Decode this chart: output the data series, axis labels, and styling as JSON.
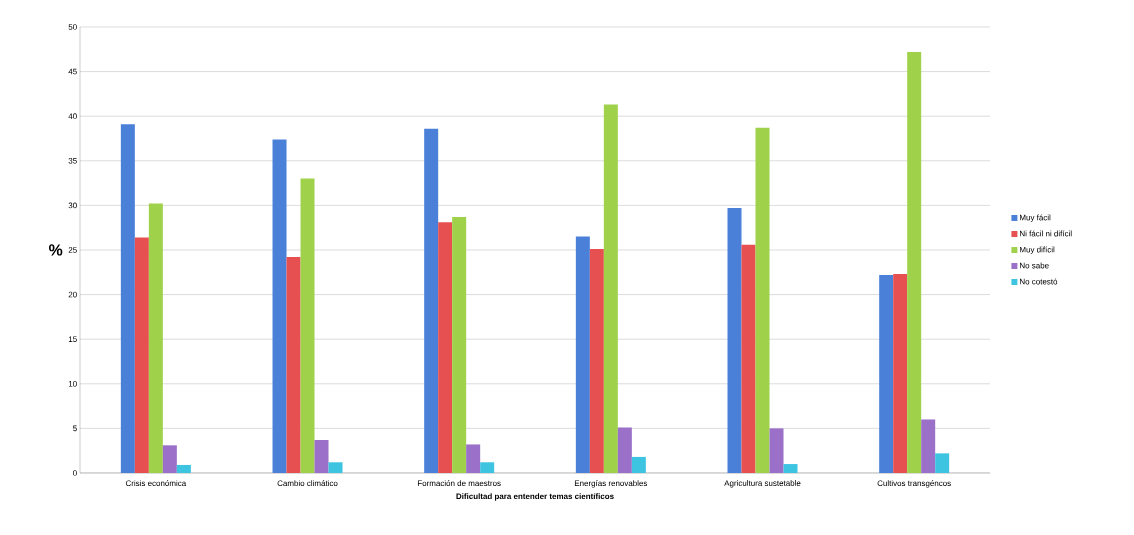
{
  "chart_data": {
    "type": "bar",
    "xlabel": "Dificultad para entender temas científicos",
    "ylabel": "%",
    "categories": [
      "Crisis económica",
      "Cambio climático",
      "Formación de maestros",
      "Energías renovables",
      "Agricultura sustetable",
      "Cultivos transgéncos"
    ],
    "series": [
      {
        "name": "Muy fácil",
        "color": "#4a80d8",
        "values": [
          39.1,
          37.4,
          38.6,
          26.5,
          29.7,
          22.2
        ]
      },
      {
        "name": "Ni fácil ni difícil",
        "color": "#e65050",
        "values": [
          26.4,
          24.2,
          28.1,
          25.1,
          25.6,
          22.3
        ]
      },
      {
        "name": "Muy difícil",
        "color": "#9fd24a",
        "values": [
          30.2,
          33.0,
          28.7,
          41.3,
          38.7,
          47.2
        ]
      },
      {
        "name": "No sabe",
        "color": "#9a70c8",
        "values": [
          3.1,
          3.7,
          3.2,
          5.1,
          5.0,
          6.0
        ]
      },
      {
        "name": "No cotestó",
        "color": "#3cc4e0",
        "values": [
          0.9,
          1.2,
          1.2,
          1.8,
          1.0,
          2.2
        ]
      }
    ],
    "ylim": [
      0,
      50
    ],
    "yticks": [
      0,
      5,
      10,
      15,
      20,
      25,
      30,
      35,
      40,
      45,
      50
    ],
    "grid": "y",
    "legend": "right"
  }
}
